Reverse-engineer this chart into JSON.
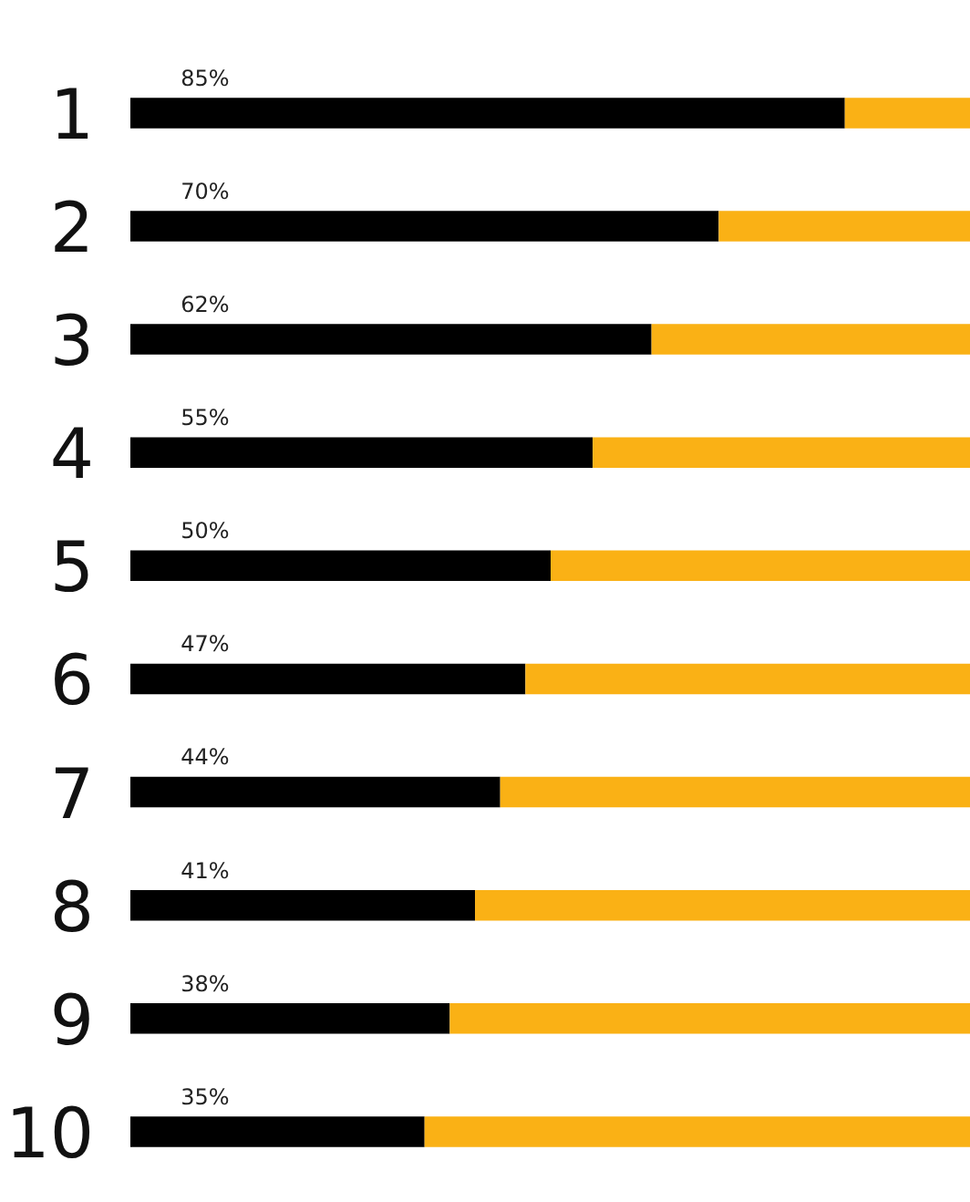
{
  "chart_data": {
    "type": "bar",
    "orientation": "horizontal",
    "stacked": true,
    "categories": [
      "1",
      "2",
      "3",
      "4",
      "5",
      "6",
      "7",
      "8",
      "9",
      "10"
    ],
    "series": [
      {
        "color": "#000000",
        "values": [
          85,
          70,
          62,
          55,
          50,
          47,
          44,
          41,
          38,
          35
        ],
        "value_labels": [
          "85%",
          "70%",
          "62%",
          "55%",
          "50%",
          "47%",
          "44%",
          "41%",
          "38%",
          "35%"
        ]
      },
      {
        "color": "#fab115",
        "values": [
          15,
          30,
          38,
          45,
          50,
          53,
          56,
          59,
          62,
          65
        ]
      }
    ],
    "xlim": [
      0,
      100
    ],
    "tick_labels": "y",
    "grid": false
  }
}
